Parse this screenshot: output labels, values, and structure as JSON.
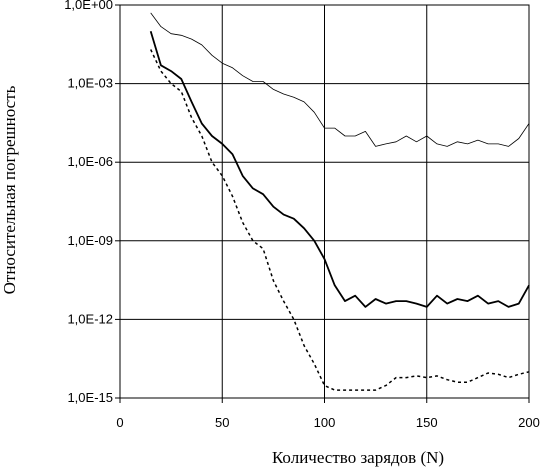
{
  "chart_data": {
    "type": "line",
    "xlabel": "Количество зарядов (N)",
    "ylabel": "Относительная погрешность",
    "xlim": [
      0,
      200
    ],
    "ylim": [
      1e-15,
      1
    ],
    "yscale": "log",
    "x_ticks": [
      0,
      50,
      100,
      150,
      200
    ],
    "x_tick_labels": [
      "0",
      "50",
      "100",
      "150",
      "200"
    ],
    "y_ticks": [
      1e-15,
      1e-12,
      1e-09,
      1e-06,
      0.001,
      1
    ],
    "y_tick_labels": [
      "1,0E-15",
      "1,0E-12",
      "1,0E-09",
      "1,0E-06",
      "1,0E-03",
      "1,0E+00"
    ],
    "grid": "x and y major",
    "legend": "none",
    "series": [
      {
        "style": "thin-solid",
        "x": [
          15,
          20,
          25,
          30,
          35,
          40,
          45,
          50,
          55,
          60,
          65,
          70,
          75,
          80,
          85,
          90,
          95,
          100,
          105,
          110,
          115,
          120,
          125,
          130,
          135,
          140,
          145,
          150,
          155,
          160,
          165,
          170,
          175,
          180,
          185,
          190,
          195,
          200
        ],
        "y": [
          0.5,
          0.15,
          0.08,
          0.07,
          0.05,
          0.03,
          0.012,
          0.006,
          0.004,
          0.002,
          0.0012,
          0.0012,
          0.0006,
          0.0004,
          0.0003,
          0.0002,
          8e-05,
          2e-05,
          2e-05,
          1e-05,
          1e-05,
          1.5e-05,
          4e-06,
          5e-06,
          6e-06,
          1e-05,
          6e-06,
          1e-05,
          5e-06,
          4e-06,
          6e-06,
          5e-06,
          7e-06,
          5e-06,
          5e-06,
          4e-06,
          8e-06,
          3e-05
        ]
      },
      {
        "style": "thick-solid",
        "x": [
          15,
          20,
          25,
          30,
          35,
          40,
          45,
          50,
          55,
          60,
          65,
          70,
          75,
          80,
          85,
          90,
          95,
          100,
          105,
          110,
          115,
          120,
          125,
          130,
          135,
          140,
          145,
          150,
          155,
          160,
          165,
          170,
          175,
          180,
          185,
          190,
          195,
          200
        ],
        "y": [
          0.1,
          0.005,
          0.003,
          0.0015,
          0.0002,
          3e-05,
          1e-05,
          5e-06,
          2e-06,
          3e-07,
          1e-07,
          6e-08,
          2e-08,
          1e-08,
          7e-09,
          3e-09,
          1e-09,
          2e-10,
          2e-11,
          5e-12,
          8e-12,
          3e-12,
          6e-12,
          4e-12,
          5e-12,
          5e-12,
          4e-12,
          3e-12,
          8e-12,
          4e-12,
          6e-12,
          5e-12,
          8e-12,
          4e-12,
          5e-12,
          3e-12,
          4e-12,
          2e-11
        ]
      },
      {
        "style": "dashed",
        "x": [
          15,
          20,
          25,
          30,
          35,
          40,
          45,
          50,
          55,
          60,
          65,
          70,
          75,
          80,
          85,
          90,
          95,
          100,
          105,
          110,
          115,
          120,
          125,
          130,
          135,
          140,
          145,
          150,
          155,
          160,
          165,
          170,
          175,
          180,
          185,
          190,
          195,
          200
        ],
        "y": [
          0.02,
          0.003,
          0.001,
          0.0005,
          5e-05,
          1e-05,
          1e-06,
          3e-07,
          5e-08,
          5e-09,
          1e-09,
          5e-10,
          3e-11,
          5e-12,
          1e-12,
          1e-13,
          2e-14,
          3e-15,
          2e-15,
          2e-15,
          2e-15,
          2e-15,
          2e-15,
          3e-15,
          6e-15,
          6e-15,
          7e-15,
          6e-15,
          7e-15,
          5e-15,
          4e-15,
          4e-15,
          6e-15,
          9e-15,
          8e-15,
          6e-15,
          8e-15,
          1e-14
        ]
      }
    ]
  }
}
